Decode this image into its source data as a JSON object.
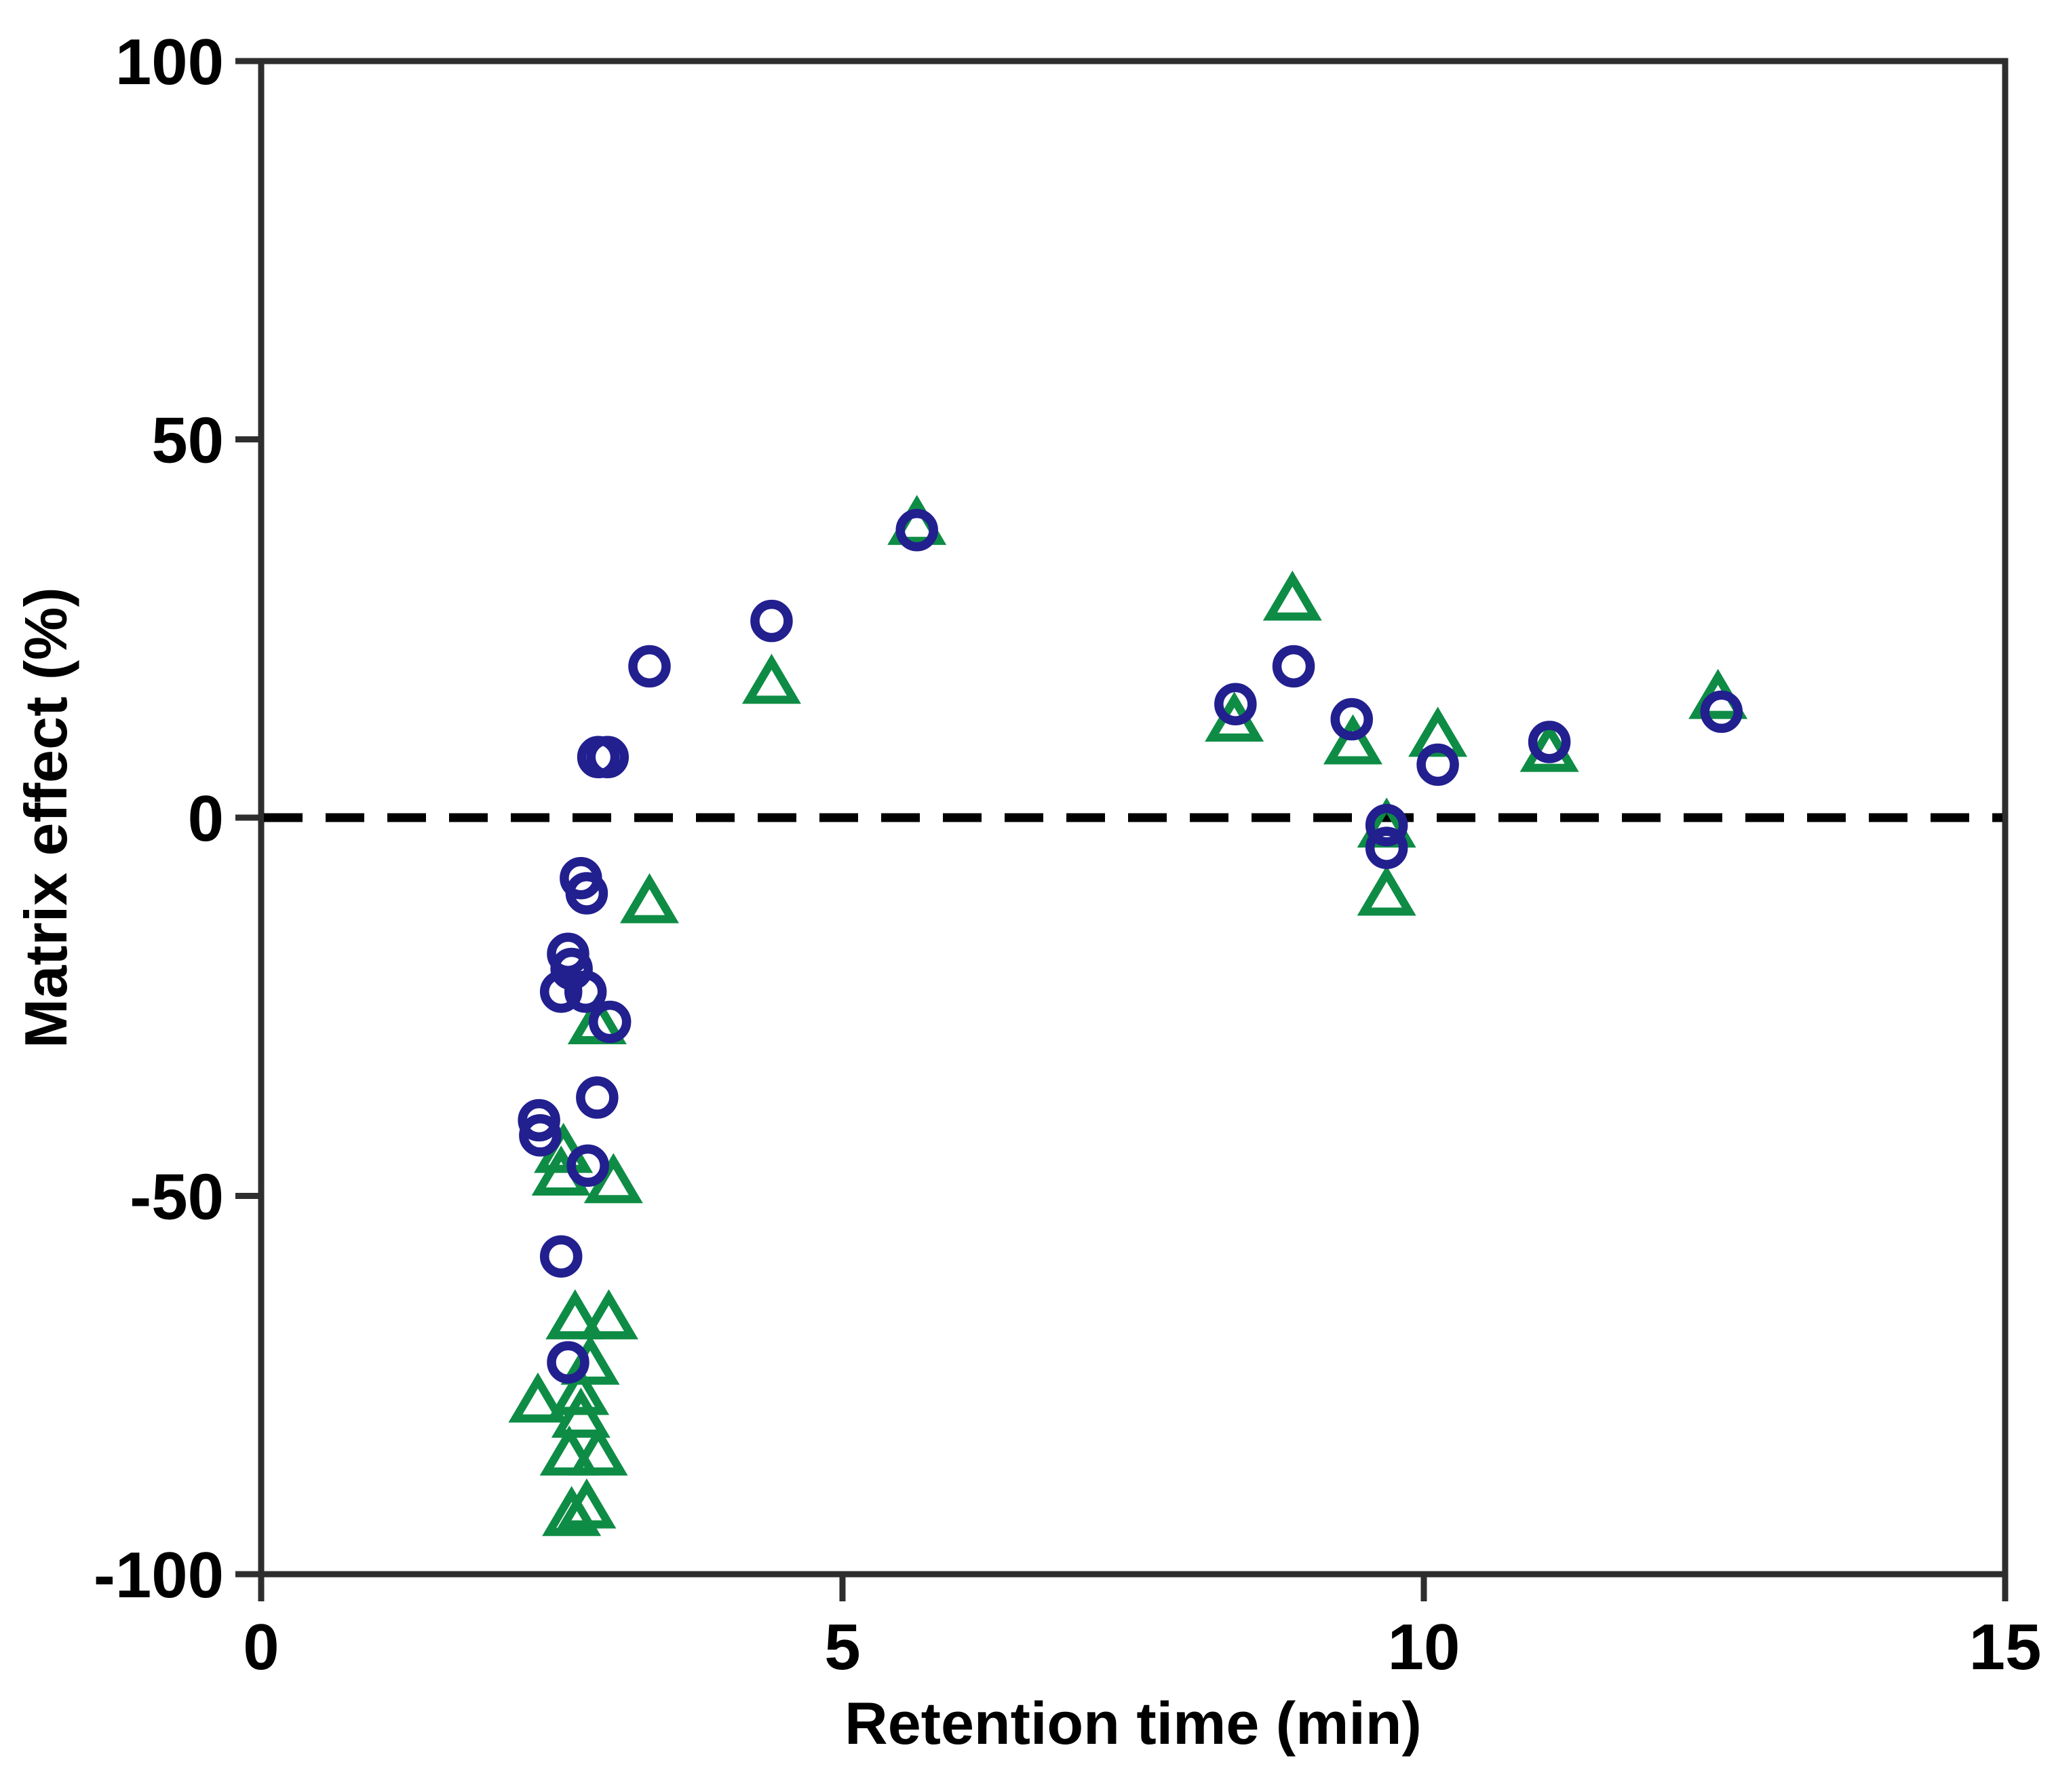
{
  "chart_data": {
    "type": "scatter",
    "title": "",
    "xlabel": "Retention time (min)",
    "ylabel": "Matrix effect (%)",
    "xlim": [
      0,
      15
    ],
    "ylim": [
      -100,
      100
    ],
    "x_ticks": [
      0,
      5,
      10,
      15
    ],
    "y_ticks": [
      100,
      50,
      0,
      -50,
      -100
    ],
    "grid": false,
    "legend": "none",
    "frame": "box",
    "axis_color": "#2e2e2e",
    "text_color": "#000000",
    "zero_reference_line": {
      "y": 0,
      "style": "dashed",
      "color": "#000000"
    },
    "series": [
      {
        "name": "blue-circles",
        "marker": "circle",
        "color": "#221f8f",
        "points": [
          [
            2.39,
            -40
          ],
          [
            2.4,
            -42
          ],
          [
            2.58,
            -23
          ],
          [
            2.58,
            -58
          ],
          [
            2.64,
            -18
          ],
          [
            2.64,
            -72
          ],
          [
            2.67,
            -20
          ],
          [
            2.75,
            -8
          ],
          [
            2.79,
            -23
          ],
          [
            2.8,
            -10
          ],
          [
            2.81,
            -46
          ],
          [
            2.89,
            -37
          ],
          [
            2.9,
            8
          ],
          [
            2.98,
            8
          ],
          [
            3.0,
            -27
          ],
          [
            3.34,
            20
          ],
          [
            4.39,
            26
          ],
          [
            5.64,
            38
          ],
          [
            8.38,
            15
          ],
          [
            8.88,
            20
          ],
          [
            9.38,
            13
          ],
          [
            9.68,
            -1
          ],
          [
            9.68,
            -4
          ],
          [
            10.12,
            7
          ],
          [
            11.08,
            10
          ],
          [
            12.56,
            14
          ]
        ]
      },
      {
        "name": "green-triangles",
        "marker": "triangle",
        "color": "#0e8c45",
        "points": [
          [
            2.38,
            -77
          ],
          [
            2.58,
            -47
          ],
          [
            2.6,
            -44
          ],
          [
            2.65,
            -84
          ],
          [
            2.67,
            -92
          ],
          [
            2.7,
            -66
          ],
          [
            2.74,
            -76
          ],
          [
            2.75,
            -79
          ],
          [
            2.8,
            -91
          ],
          [
            2.83,
            -72
          ],
          [
            2.89,
            -27
          ],
          [
            2.9,
            -84
          ],
          [
            2.99,
            -66
          ],
          [
            3.03,
            -48
          ],
          [
            3.34,
            -11
          ],
          [
            4.39,
            18
          ],
          [
            5.64,
            39
          ],
          [
            8.37,
            13
          ],
          [
            8.87,
            29
          ],
          [
            9.39,
            10
          ],
          [
            9.68,
            -1
          ],
          [
            9.68,
            -10
          ],
          [
            10.12,
            11
          ],
          [
            11.08,
            9
          ],
          [
            12.53,
            16
          ]
        ]
      }
    ]
  }
}
